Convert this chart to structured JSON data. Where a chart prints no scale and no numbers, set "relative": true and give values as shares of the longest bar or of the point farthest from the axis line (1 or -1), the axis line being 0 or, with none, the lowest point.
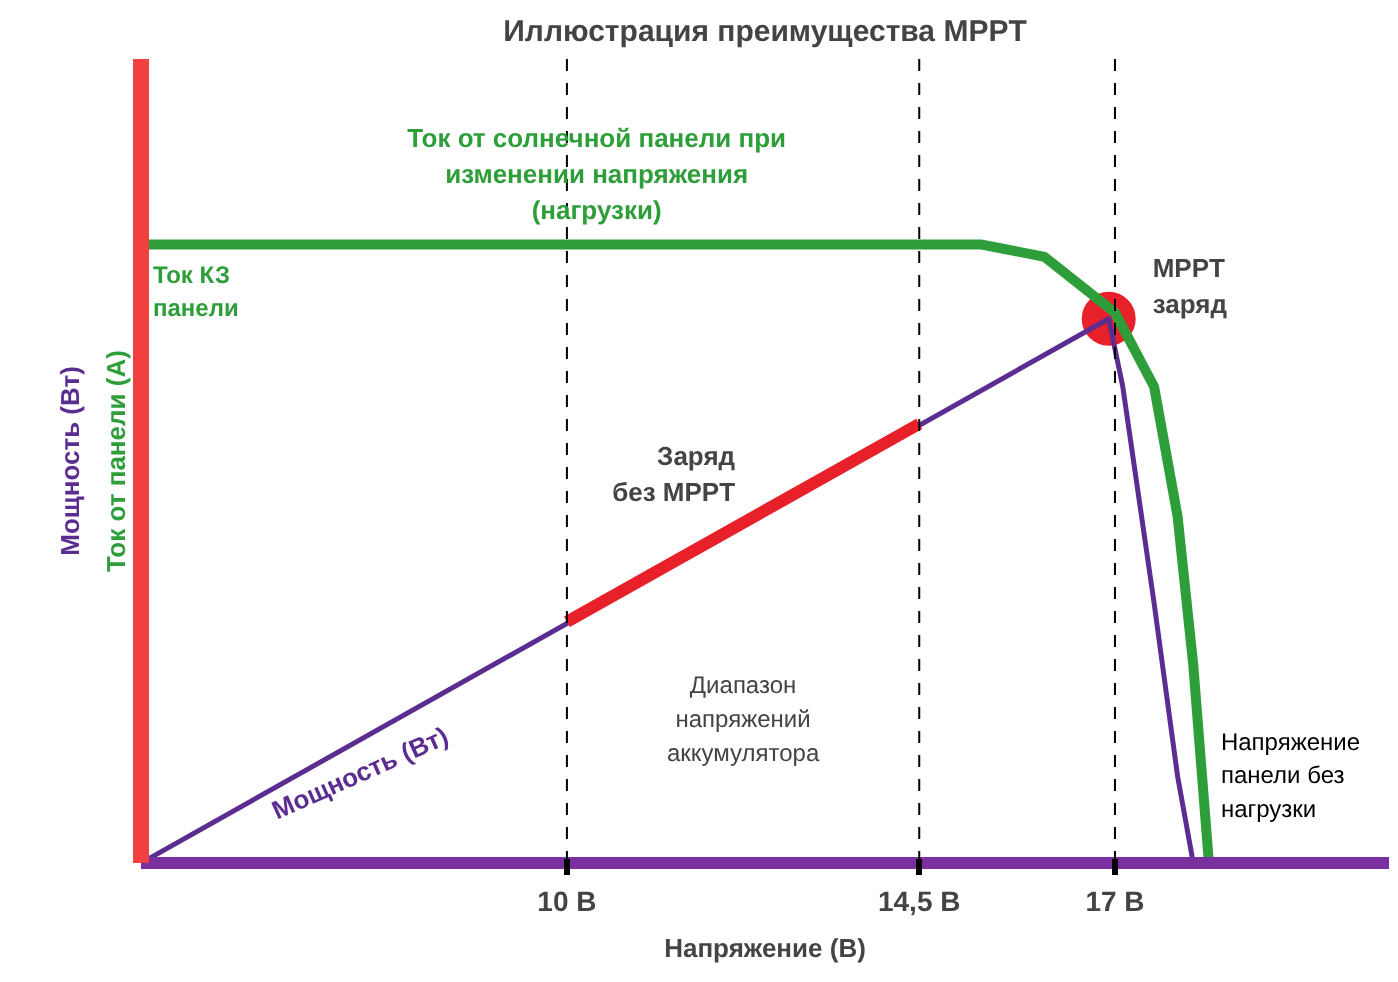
{
  "chart_data": {
    "type": "line",
    "title": "Иллюстрация преимущества MPPT",
    "xlabel": "Напряжение (В)",
    "ylabel": "Ток от панели (А)",
    "relative": true,
    "xlim": [
      4.56,
      20.5
    ],
    "xticks": [
      {
        "value": 10,
        "label": "10 В"
      },
      {
        "value": 14.5,
        "label": "14,5 В"
      },
      {
        "value": 17,
        "label": "17 В"
      }
    ],
    "series": [
      {
        "name": "Ток от солнечной панели при изменении напряжения (нагрузки)",
        "color": "#2e9e3a",
        "x": [
          4.56,
          15.3,
          16.1,
          17,
          17.5,
          17.8,
          18.0,
          18.2
        ],
        "values": [
          1,
          1,
          0.98,
          0.89,
          0.77,
          0.56,
          0.32,
          0
        ]
      },
      {
        "name": "Мощность (Вт)",
        "color": "#5b2d91",
        "x": [
          4.56,
          16.92,
          17.1,
          17.5,
          17.8,
          18.0
        ],
        "values": [
          0,
          0.88,
          0.77,
          0.42,
          0.14,
          0
        ]
      },
      {
        "name": "Заряд без MPPT",
        "color": "#e8202a",
        "x": [
          10,
          14.5
        ],
        "values": [
          0.39,
          0.71
        ]
      },
      {
        "name": "MPPT заряд",
        "type": "scatter",
        "color": "#e8202a",
        "x": [
          16.92
        ],
        "values": [
          0.88
        ]
      }
    ],
    "ref_lines": [
      {
        "axis": "x",
        "value": 10,
        "line_style": "dashed"
      },
      {
        "axis": "x",
        "value": 14.5,
        "line_style": "dashed"
      },
      {
        "axis": "x",
        "value": 17,
        "line_style": "dashed"
      }
    ],
    "annotations": [
      {
        "text": "Ток КЗ панели",
        "x": 4.56,
        "y": 1
      },
      {
        "text": "Напряжение панели без нагрузки",
        "x": 18.2,
        "y": 0
      },
      "Диапазон напряжений аккумулятора",
      "Мощность (Вт)"
    ],
    "grid": false,
    "line_style": "solid"
  }
}
